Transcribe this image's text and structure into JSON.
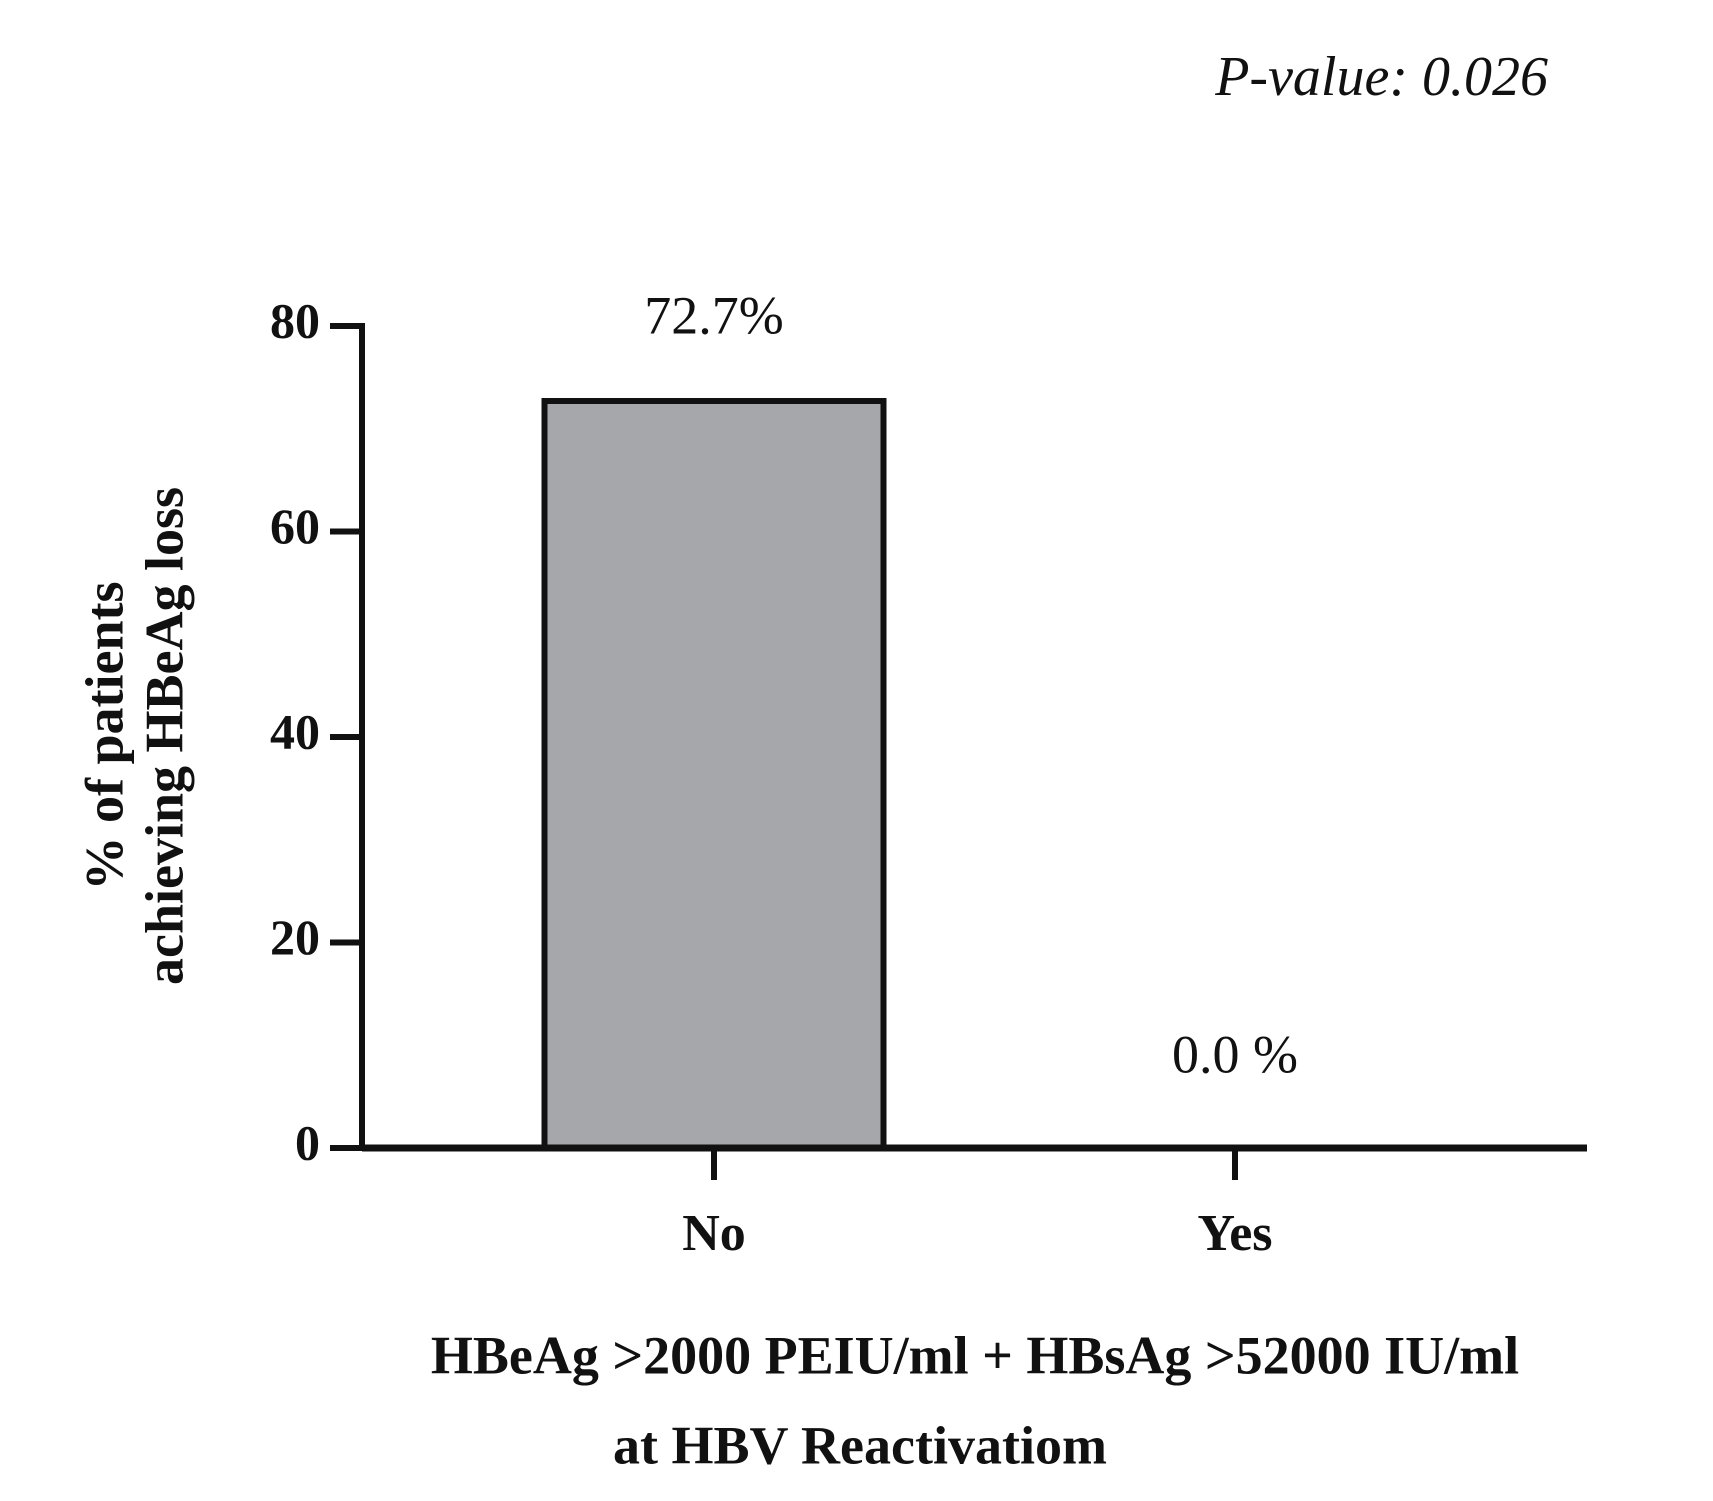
{
  "chart_data": {
    "type": "bar",
    "annotation": "P-value: 0.026",
    "y_label": [
      "% of patients",
      "achieving HBeAg loss"
    ],
    "x_label": [
      "HBeAg >2000 PEIU/ml + HBsAg >52000 IU/ml",
      "at HBV Reactivatiom"
    ],
    "categories": [
      "No",
      "Yes"
    ],
    "values": [
      72.7,
      0.0
    ],
    "value_labels": [
      "72.7%",
      "0.0 %"
    ],
    "color": "#a6a7aa",
    "ylim": [
      0,
      80
    ],
    "yticks": [
      0,
      20,
      40,
      60,
      80
    ]
  }
}
